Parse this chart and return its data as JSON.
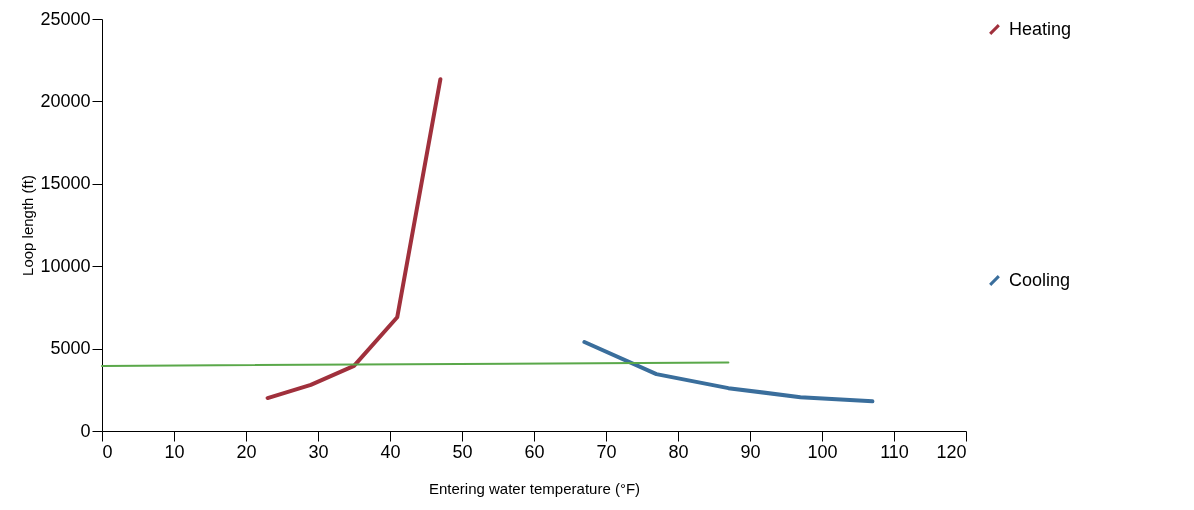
{
  "chart_data": {
    "type": "line",
    "xlabel": "Entering water temperature (°F)",
    "ylabel": "Loop length (ft)",
    "xlim": [
      0,
      120
    ],
    "xticks": [
      0,
      10,
      20,
      30,
      40,
      50,
      60,
      70,
      80,
      90,
      100,
      110,
      120
    ],
    "ylim": [
      0,
      25000
    ],
    "yticks": [
      0,
      5000,
      10000,
      15000,
      20000,
      25000
    ],
    "grid": false,
    "legend": "right",
    "marker": "none",
    "line_style": "solid",
    "series": [
      {
        "name": "Heating",
        "color": "#a0303c",
        "x": [
          23,
          29,
          35,
          41,
          47
        ],
        "values": [
          2000,
          2800,
          3950,
          6900,
          21350
        ]
      },
      {
        "name": "Cooling",
        "color": "#3a6e9c",
        "x": [
          67,
          77,
          87,
          97,
          107
        ],
        "values": [
          5400,
          3450,
          2600,
          2050,
          1800
        ]
      },
      {
        "color": "#5aa84a",
        "x": [
          0,
          87
        ],
        "values": [
          3950,
          4150
        ]
      }
    ]
  }
}
